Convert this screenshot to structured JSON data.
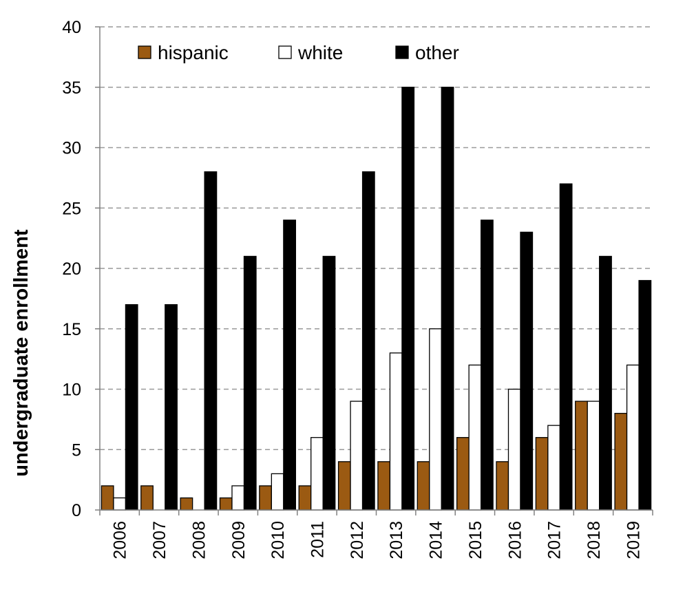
{
  "chart_data": {
    "type": "bar",
    "title": "",
    "xlabel": "",
    "ylabel": "undergraduate enrollment",
    "ylim": [
      0,
      40
    ],
    "yticks": [
      0,
      5,
      10,
      15,
      20,
      25,
      30,
      35,
      40
    ],
    "grid": "horizontal dashed",
    "legend_position": "top-left",
    "categories": [
      "2006",
      "2007",
      "2008",
      "2009",
      "2010",
      "2011",
      "2012",
      "2013",
      "2014",
      "2015",
      "2016",
      "2017",
      "2018",
      "2019"
    ],
    "series": [
      {
        "name": "hispanic",
        "color": "#9B5A12",
        "values": [
          2,
          2,
          1,
          1,
          2,
          2,
          4,
          4,
          4,
          6,
          4,
          6,
          9,
          8
        ]
      },
      {
        "name": "white",
        "color": "#FFFFFF",
        "values": [
          1,
          0,
          0,
          2,
          3,
          6,
          9,
          13,
          15,
          12,
          10,
          7,
          9,
          12
        ]
      },
      {
        "name": "other",
        "color": "#000000",
        "values": [
          17,
          17,
          28,
          21,
          24,
          21,
          28,
          35,
          35,
          24,
          23,
          27,
          21,
          19
        ]
      }
    ]
  }
}
